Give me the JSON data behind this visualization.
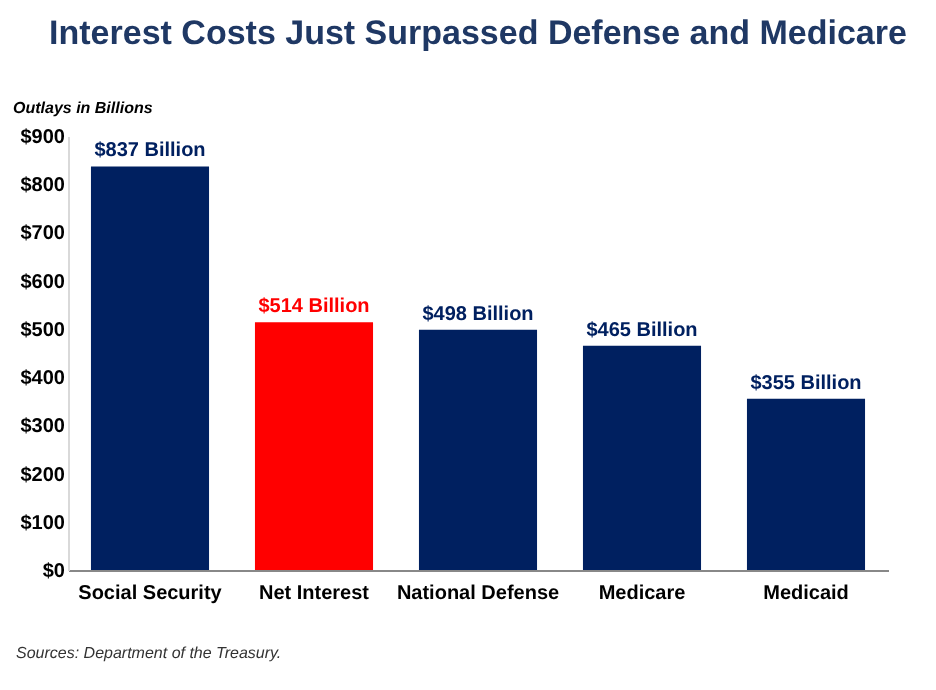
{
  "chart_data": {
    "type": "bar",
    "title": "Interest Costs Just Surpassed Defense and Medicare",
    "ylabel": "Outlays in Billions",
    "categories": [
      "Social Security",
      "Net Interest",
      "National Defense",
      "Medicare",
      "Medicaid"
    ],
    "values": [
      837,
      514,
      498,
      465,
      355
    ],
    "colors": [
      "#002060",
      "#ff0000",
      "#002060",
      "#002060",
      "#002060"
    ],
    "value_labels": [
      "$837 Billion",
      "$514 Billion",
      "$498 Billion",
      "$465 Billion",
      "$355 Billion"
    ],
    "ylim": [
      0,
      900
    ],
    "yticks": [
      {
        "value": 0,
        "label": "$0"
      },
      {
        "value": 100,
        "label": "$100"
      },
      {
        "value": 200,
        "label": "$200"
      },
      {
        "value": 300,
        "label": "$300"
      },
      {
        "value": 400,
        "label": "$400"
      },
      {
        "value": 500,
        "label": "$500"
      },
      {
        "value": 600,
        "label": "$600"
      },
      {
        "value": 700,
        "label": "$700"
      },
      {
        "value": 800,
        "label": "$800"
      },
      {
        "value": 900,
        "label": "$900"
      }
    ],
    "grid": false,
    "annotations": [
      "Sources: Department of the Treasury."
    ]
  }
}
